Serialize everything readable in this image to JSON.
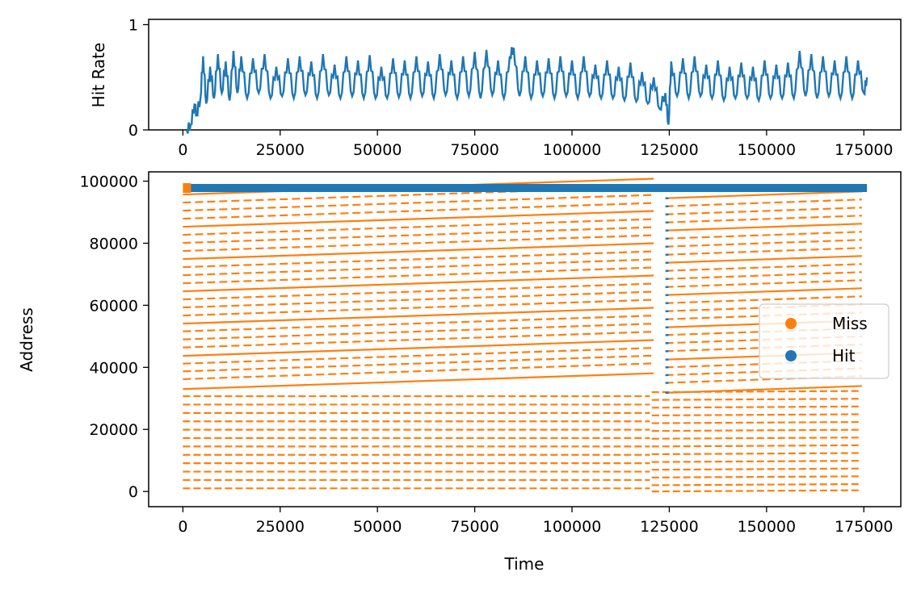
{
  "colors": {
    "hit": "#1f77b4",
    "miss": "#ff7f0e"
  },
  "chart_data": [
    {
      "type": "line",
      "ylabel": "Hit Rate",
      "xlabel": "",
      "xlim": [
        -8800,
        184500
      ],
      "ylim": [
        0,
        1.05
      ],
      "x_ticks": [
        0,
        25000,
        50000,
        75000,
        100000,
        125000,
        150000,
        175000
      ],
      "x_tick_labels": [
        "0",
        "25000",
        "50000",
        "75000",
        "100000",
        "125000",
        "150000",
        "175000"
      ],
      "y_ticks": [
        0,
        1
      ],
      "y_tick_labels": [
        "0",
        "1"
      ],
      "series": [
        {
          "color": "hit",
          "x": [
            1000,
            2000,
            3000,
            3500,
            4500,
            5200,
            6000,
            7000,
            8000,
            9000,
            10000,
            11000,
            12000,
            13000,
            14000,
            15000,
            16500,
            18000,
            19500,
            21000,
            22500,
            24000,
            25500,
            27000,
            28500,
            30000,
            31500,
            33000,
            34500,
            36000,
            37500,
            39000,
            40500,
            42000,
            43500,
            45000,
            46500,
            48000,
            49500,
            51000,
            52500,
            54000,
            55500,
            57000,
            58500,
            60000,
            61500,
            63000,
            64500,
            66000,
            67500,
            69000,
            70500,
            72000,
            73500,
            75000,
            76500,
            78000,
            79500,
            81000,
            82500,
            84000,
            85000,
            86500,
            88000,
            89500,
            91000,
            92500,
            94000,
            95500,
            97000,
            98500,
            100000,
            101500,
            103000,
            104500,
            106000,
            107500,
            109000,
            110500,
            112000,
            113500,
            115000,
            116500,
            118000,
            119500,
            121000,
            122500,
            124000,
            124800,
            125500,
            127000,
            128500,
            130000,
            131500,
            133000,
            134500,
            136000,
            137500,
            139000,
            140500,
            142000,
            143500,
            145000,
            146500,
            148000,
            149500,
            151000,
            152500,
            154000,
            155500,
            157000,
            158500,
            160000,
            161500,
            163000,
            164500,
            166000,
            167500,
            169000,
            170500,
            172000,
            173500,
            175000,
            175800
          ],
          "values": [
            0.0,
            0.05,
            0.25,
            0.15,
            0.3,
            0.7,
            0.25,
            0.6,
            0.3,
            0.72,
            0.35,
            0.65,
            0.28,
            0.75,
            0.35,
            0.7,
            0.3,
            0.68,
            0.35,
            0.72,
            0.3,
            0.6,
            0.32,
            0.68,
            0.3,
            0.7,
            0.33,
            0.65,
            0.3,
            0.72,
            0.33,
            0.62,
            0.3,
            0.7,
            0.32,
            0.66,
            0.3,
            0.71,
            0.3,
            0.6,
            0.3,
            0.68,
            0.31,
            0.66,
            0.3,
            0.7,
            0.32,
            0.65,
            0.3,
            0.72,
            0.33,
            0.66,
            0.3,
            0.7,
            0.32,
            0.74,
            0.3,
            0.76,
            0.33,
            0.66,
            0.3,
            0.7,
            0.78,
            0.32,
            0.7,
            0.3,
            0.66,
            0.32,
            0.68,
            0.3,
            0.7,
            0.32,
            0.66,
            0.3,
            0.7,
            0.32,
            0.62,
            0.3,
            0.66,
            0.3,
            0.6,
            0.28,
            0.64,
            0.27,
            0.55,
            0.25,
            0.5,
            0.2,
            0.35,
            0.05,
            0.65,
            0.32,
            0.68,
            0.3,
            0.7,
            0.32,
            0.62,
            0.3,
            0.66,
            0.28,
            0.6,
            0.3,
            0.64,
            0.3,
            0.6,
            0.28,
            0.66,
            0.3,
            0.62,
            0.3,
            0.64,
            0.3,
            0.75,
            0.32,
            0.72,
            0.3,
            0.7,
            0.32,
            0.66,
            0.3,
            0.7,
            0.3,
            0.66,
            0.35,
            0.5
          ]
        }
      ]
    },
    {
      "type": "scatter",
      "xlabel": "Time",
      "ylabel": "Address",
      "xlim": [
        -8800,
        184500
      ],
      "ylim": [
        -4900,
        103000
      ],
      "x_ticks": [
        0,
        25000,
        50000,
        75000,
        100000,
        125000,
        150000,
        175000
      ],
      "x_tick_labels": [
        "0",
        "25000",
        "50000",
        "75000",
        "100000",
        "125000",
        "150000",
        "175000"
      ],
      "y_ticks": [
        0,
        20000,
        40000,
        60000,
        80000,
        100000
      ],
      "y_tick_labels": [
        "0",
        "20000",
        "40000",
        "60000",
        "80000",
        "100000"
      ],
      "legend": {
        "position": "center-right",
        "entries": [
          {
            "label": "Miss",
            "color": "miss"
          },
          {
            "label": "Hit",
            "color": "hit"
          }
        ]
      },
      "hit_band": {
        "x": [
          1000,
          175800
        ],
        "y": 97800
      },
      "miss_segments_low": {
        "x_range": [
          0,
          174500
        ],
        "y_start": [
          1000,
          3700,
          6400,
          9100,
          11800,
          14500,
          17200,
          19900,
          22600,
          25300,
          28000,
          30700
        ],
        "x_break": 120000,
        "y_after_break": [
          0,
          2000,
          4500,
          7000,
          9500,
          12000,
          14500,
          17000,
          19500,
          22000,
          24500,
          27000,
          29500,
          32000
        ],
        "style": "dashed"
      },
      "miss_segments_high": {
        "x_range": [
          0,
          174500
        ],
        "y_start": [
          33000,
          36200,
          38700,
          41200,
          43700,
          46400,
          49000,
          51600,
          54100,
          56700,
          59300,
          61900,
          64500,
          67100,
          69700,
          72300,
          74900,
          77500,
          80100,
          82700,
          85300,
          87900,
          90500,
          93100,
          95700
        ],
        "slope_per_1000": 42,
        "x_break": 121000,
        "solid_every": 4,
        "style": "dashed"
      }
    }
  ]
}
